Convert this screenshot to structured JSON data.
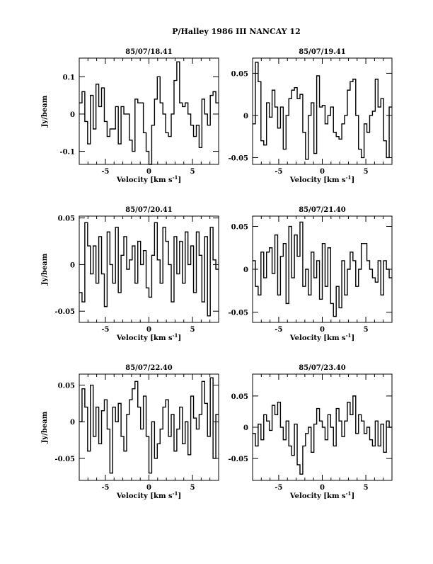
{
  "chart_data": {
    "title": "P/Halley 1986 III    NANCAY      12",
    "type": "line",
    "panels": [
      {
        "title": "85/07/18.41",
        "xlabel": "Velocity [km s",
        "xlabel_sup": "-1",
        "xlabel_end": "]",
        "ylabel": "Jy/beam",
        "xlim": [
          -8,
          8
        ],
        "ylim": [
          -0.135,
          0.15
        ],
        "xticks": [
          "-5",
          "0",
          "5"
        ],
        "xtick_values": [
          -5,
          0,
          5
        ],
        "yticks": [
          "-0.1",
          "0",
          "0.1"
        ],
        "ytick_values": [
          -0.1,
          0,
          0.1
        ],
        "y": [
          0.03,
          0.06,
          -0.02,
          -0.08,
          0.05,
          -0.04,
          0.08,
          0.02,
          0.07,
          -0.02,
          -0.06,
          -0.04,
          -0.04,
          0.02,
          -0.08,
          0.02,
          0.0,
          0.0,
          -0.07,
          -0.1,
          0.04,
          0.03,
          0.03,
          -0.05,
          -0.1,
          -0.14,
          -0.03,
          0.04,
          0.1,
          0.03,
          0.0,
          -0.05,
          -0.06,
          0.0,
          0.09,
          0.14,
          0.03,
          0.02,
          0.03,
          0.0,
          -0.03,
          -0.06,
          -0.03,
          -0.09,
          0.04,
          0.0,
          -0.03,
          0.05,
          0.06,
          0.03
        ]
      },
      {
        "title": "85/07/19.41",
        "xlabel": "Velocity [km s",
        "xlabel_sup": "-1",
        "xlabel_end": "]",
        "ylabel": "",
        "xlim": [
          -8,
          8
        ],
        "ylim": [
          -0.058,
          0.068
        ],
        "xticks": [
          "-5",
          "0",
          "5"
        ],
        "xtick_values": [
          -5,
          0,
          5
        ],
        "yticks": [
          "-0.05",
          "0",
          "0.05"
        ],
        "ytick_values": [
          -0.05,
          0,
          0.05
        ],
        "y": [
          -0.01,
          0.063,
          0.04,
          -0.03,
          -0.035,
          0.015,
          -0.002,
          0.03,
          0.01,
          -0.015,
          0.01,
          -0.04,
          0.0,
          0.02,
          0.03,
          0.033,
          0.02,
          0.025,
          -0.02,
          -0.052,
          0.0,
          0.015,
          -0.045,
          0.047,
          0.01,
          0.012,
          -0.01,
          0.0,
          0.01,
          -0.02,
          -0.025,
          -0.028,
          -0.01,
          0.0,
          0.03,
          0.04,
          0.043,
          0.0,
          -0.04,
          -0.05,
          -0.01,
          -0.02,
          0.0,
          0.005,
          0.043,
          0.01,
          0.02,
          -0.03,
          -0.05,
          0.01
        ]
      },
      {
        "title": "85/07/20.41",
        "xlabel": "Velocity [km s",
        "xlabel_sup": "-1",
        "xlabel_end": "]",
        "ylabel": "Jy/beam",
        "xlim": [
          -8,
          8
        ],
        "ylim": [
          -0.062,
          0.052
        ],
        "xticks": [
          "-5",
          "0",
          "5"
        ],
        "xtick_values": [
          -5,
          0,
          5
        ],
        "yticks": [
          "-0.05",
          "0",
          "0.05"
        ],
        "ytick_values": [
          -0.05,
          0,
          0.05
        ],
        "y": [
          -0.03,
          -0.04,
          0.045,
          0.02,
          -0.01,
          0.02,
          -0.02,
          0.03,
          -0.01,
          -0.045,
          0.035,
          0.0,
          -0.02,
          0.04,
          -0.03,
          0.01,
          0.03,
          -0.005,
          0.005,
          0.02,
          -0.02,
          0.025,
          0.0,
          0.015,
          -0.025,
          -0.035,
          0.01,
          0.045,
          0.005,
          -0.02,
          0.04,
          0.025,
          0.0,
          -0.04,
          0.03,
          -0.01,
          0.025,
          -0.02,
          0.035,
          0.0,
          0.02,
          -0.03,
          0.035,
          0.01,
          -0.04,
          0.03,
          -0.055,
          0.04,
          0.005,
          -0.005
        ]
      },
      {
        "title": "85/07/21.40",
        "xlabel": "Velocity [km s",
        "xlabel_sup": "-1",
        "xlabel_end": "]",
        "ylabel": "",
        "xlim": [
          -8,
          8
        ],
        "ylim": [
          -0.062,
          0.062
        ],
        "xticks": [
          "-5",
          "0",
          "5"
        ],
        "xtick_values": [
          -5,
          0,
          5
        ],
        "yticks": [
          "-0.05",
          "0",
          "0.05"
        ],
        "ytick_values": [
          -0.05,
          0,
          0.05
        ],
        "y": [
          0.01,
          -0.02,
          -0.03,
          0.02,
          -0.01,
          0.02,
          0.025,
          -0.005,
          0.04,
          -0.03,
          0.015,
          0.03,
          -0.04,
          0.05,
          -0.01,
          0.04,
          0.015,
          0.055,
          -0.02,
          0.0,
          -0.03,
          0.02,
          -0.01,
          0.01,
          -0.035,
          0.03,
          -0.02,
          0.025,
          -0.04,
          -0.055,
          -0.02,
          -0.045,
          0.01,
          -0.03,
          0.0,
          0.02,
          0.01,
          -0.02,
          0.0,
          0.03,
          0.03,
          0.01,
          0.0,
          -0.01,
          -0.015,
          0.01,
          -0.03,
          0.01,
          0.0,
          -0.01
        ]
      },
      {
        "title": "85/07/22.40",
        "xlabel": "Velocity [km s",
        "xlabel_sup": "-1",
        "xlabel_end": "]",
        "ylabel": "Jy/beam",
        "xlim": [
          -8,
          8
        ],
        "ylim": [
          -0.08,
          0.065
        ],
        "xticks": [
          "-5",
          "0",
          "5"
        ],
        "xtick_values": [
          -5,
          0,
          5
        ],
        "yticks": [
          "-0.05",
          "0",
          "0.05"
        ],
        "ytick_values": [
          -0.05,
          0,
          0.05
        ],
        "y": [
          0.0,
          0.045,
          0.02,
          -0.04,
          0.05,
          -0.02,
          0.02,
          -0.03,
          0.015,
          0.03,
          -0.01,
          -0.07,
          0.02,
          0.0,
          0.025,
          -0.02,
          -0.04,
          0.01,
          0.03,
          0.045,
          0.055,
          0.02,
          -0.01,
          0.035,
          -0.02,
          -0.07,
          0.0,
          -0.05,
          -0.03,
          -0.01,
          0.02,
          0.03,
          -0.02,
          0.01,
          -0.04,
          -0.01,
          0.02,
          -0.03,
          0.0,
          -0.045,
          0.035,
          0.005,
          -0.01,
          0.01,
          0.055,
          0.025,
          -0.02,
          0.06,
          -0.05,
          0.01
        ]
      },
      {
        "title": "85/07/23.40",
        "xlabel": "Velocity [km s",
        "xlabel_sup": "-1",
        "xlabel_end": "]",
        "ylabel": "",
        "xlim": [
          -8,
          8
        ],
        "ylim": [
          -0.085,
          0.085
        ],
        "xticks": [
          "-5",
          "0",
          "5"
        ],
        "xtick_values": [
          -5,
          0,
          5
        ],
        "yticks": [
          "-0.05",
          "0",
          "0.05"
        ],
        "ytick_values": [
          -0.05,
          0,
          0.05
        ],
        "y": [
          -0.01,
          -0.03,
          0.005,
          -0.02,
          0.02,
          0.01,
          -0.005,
          0.035,
          0.02,
          0.04,
          0.0,
          -0.02,
          0.01,
          -0.03,
          -0.045,
          0.005,
          -0.06,
          -0.075,
          -0.03,
          -0.01,
          0.0,
          -0.04,
          0.005,
          0.03,
          0.01,
          0.0,
          -0.02,
          0.02,
          0.0,
          -0.03,
          0.03,
          0.01,
          -0.015,
          0.01,
          0.04,
          0.02,
          0.05,
          -0.01,
          0.02,
          0.01,
          -0.01,
          0.0,
          -0.02,
          -0.03,
          0.01,
          -0.03,
          0.005,
          -0.04,
          0.01,
          0.0
        ]
      }
    ]
  }
}
